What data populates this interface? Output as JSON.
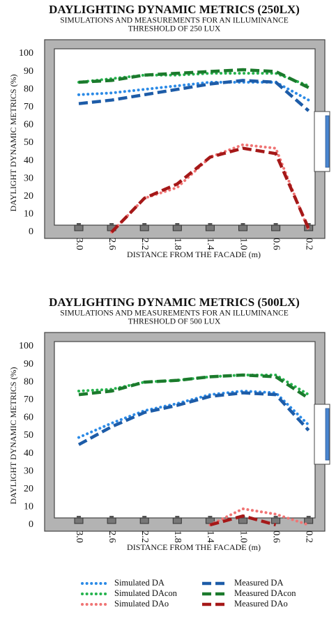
{
  "chart_data": [
    {
      "type": "line",
      "title": "DAYLIGHTING DYNAMIC METRICS (250LX)",
      "subtitle": [
        "SIMULATIONS AND MEASUREMENTS FOR AN ILLUMINANCE",
        "THRESHOLD OF 250 LUX"
      ],
      "xlabel": "DISTANCE FROM THE FACADE (m)",
      "ylabel": "DAYLIGHT DYNAMIC METRICS (%)",
      "categories": [
        "3.0",
        "2.6",
        "2.2",
        "1.8",
        "1.4",
        "1.0",
        "0.6",
        "0.2"
      ],
      "ylim": [
        0,
        100
      ],
      "yticks": [
        0,
        10,
        20,
        30,
        40,
        50,
        60,
        70,
        80,
        90,
        100
      ],
      "series": [
        {
          "color": "#2b8ae6",
          "dash": "dotted",
          "values": [
            77,
            78,
            80,
            82,
            84,
            84,
            84,
            74
          ]
        },
        {
          "color": "#1d5ca8",
          "dash": "dashed",
          "values": [
            72,
            74,
            77,
            80,
            83,
            85,
            84,
            68
          ]
        },
        {
          "color": "#25b34e",
          "dash": "dotted",
          "values": [
            84,
            86,
            88,
            88,
            89,
            89,
            89,
            82
          ]
        },
        {
          "color": "#1b7a2c",
          "dash": "dashed",
          "values": [
            84,
            85,
            88,
            89,
            90,
            91,
            90,
            81
          ]
        },
        {
          "color": "#f07474",
          "dash": "dotted",
          "values": [
            null,
            0,
            19,
            25,
            42,
            49,
            47,
            1
          ]
        },
        {
          "color": "#a51818",
          "dash": "dashed",
          "values": [
            null,
            0,
            19,
            27,
            42,
            47,
            44,
            2
          ]
        }
      ]
    },
    {
      "type": "line",
      "title": "DAYLIGHTING DYNAMIC METRICS (500LX)",
      "subtitle": [
        "SIMULATIONS AND MEASUREMENTS FOR AN ILLUMINANCE",
        "THRESHOLD OF 500 LUX"
      ],
      "xlabel": "DISTANCE FROM THE FACADE (m)",
      "ylabel": "DAYLIGHT DYNAMIC METRICS (%)",
      "categories": [
        "3.0",
        "2.6",
        "2.2",
        "1.8",
        "1.4",
        "1.0",
        "0.6",
        "0.2"
      ],
      "ylim": [
        0,
        100
      ],
      "yticks": [
        0,
        10,
        20,
        30,
        40,
        50,
        60,
        70,
        80,
        90,
        100
      ],
      "series": [
        {
          "name": "Simulated DA",
          "color": "#2b8ae6",
          "dash": "dotted",
          "values": [
            49,
            57,
            64,
            68,
            73,
            75,
            74,
            56
          ]
        },
        {
          "name": "Measured DA",
          "color": "#1d5ca8",
          "dash": "dashed",
          "values": [
            45,
            55,
            63,
            67,
            72,
            74,
            73,
            53
          ]
        },
        {
          "name": "Simulated DAcon",
          "color": "#25b34e",
          "dash": "dotted",
          "values": [
            75,
            76,
            80,
            81,
            83,
            84,
            84,
            73
          ]
        },
        {
          "name": "Measured DAcon",
          "color": "#1b7a2c",
          "dash": "dashed",
          "values": [
            73,
            75,
            80,
            81,
            83,
            84,
            83,
            71
          ]
        },
        {
          "name": "Simulated DAo",
          "color": "#f07474",
          "dash": "dotted",
          "values": [
            null,
            null,
            null,
            null,
            0,
            9,
            6,
            0
          ]
        },
        {
          "name": "Measured DAo",
          "color": "#a51818",
          "dash": "dashed",
          "values": [
            null,
            null,
            null,
            null,
            0,
            5,
            0,
            null
          ]
        }
      ]
    }
  ]
}
